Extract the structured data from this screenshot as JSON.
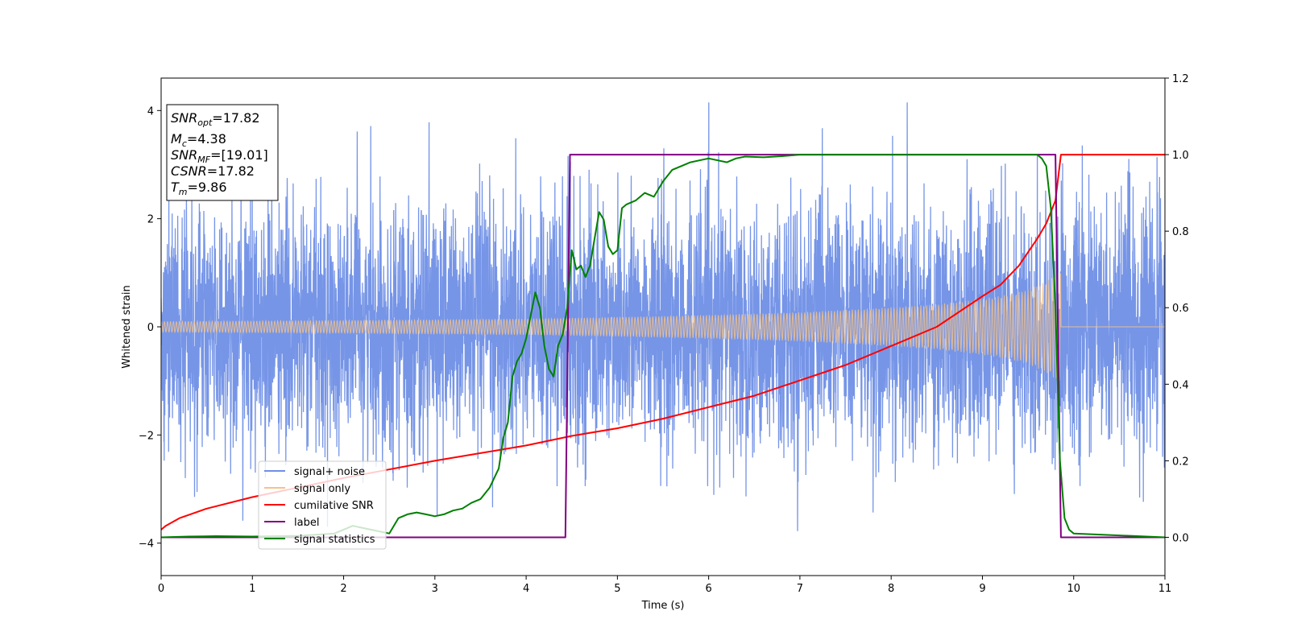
{
  "chart_data": {
    "type": "line",
    "xlabel": "Time (s)",
    "ylabel_left": "Whitened strain",
    "ylabel_right": "",
    "xlim": [
      0,
      11
    ],
    "ylim_left": [
      -4.6,
      4.6
    ],
    "ylim_right": [
      -0.1,
      1.2
    ],
    "xticks": [
      "0",
      "1",
      "2",
      "3",
      "4",
      "5",
      "6",
      "7",
      "8",
      "9",
      "10",
      "11"
    ],
    "yticks_left": [
      "4",
      "2",
      "0",
      "−2",
      "−4"
    ],
    "yticks_right": [
      "1.2",
      "1.0",
      "0.8",
      "0.6",
      "0.4",
      "0.2",
      "0.0"
    ],
    "legend_position": "lower left",
    "info_box": {
      "snr_opt": "=17.82",
      "mc": "=4.38",
      "snr_mf": "=[19.01]",
      "csnr": "=17.82",
      "tm": "=9.86"
    },
    "series": [
      {
        "name": "signal+ noise",
        "axis": "left",
        "color": "#6f8fe6",
        "style": "noise band",
        "x_range": [
          0,
          11
        ],
        "typical_range": [
          -2.0,
          2.0
        ],
        "extremes": [
          -4.15,
          4.15
        ]
      },
      {
        "name": "signal only",
        "axis": "left",
        "color": "#f5c38a",
        "style": "chirp envelope",
        "envelope_x": [
          0,
          2,
          4,
          5,
          6,
          7,
          8,
          8.5,
          9,
          9.3,
          9.5,
          9.65,
          9.75,
          9.82,
          9.86
        ],
        "envelope_y": [
          0.1,
          0.12,
          0.15,
          0.18,
          0.22,
          0.27,
          0.36,
          0.42,
          0.52,
          0.6,
          0.7,
          0.8,
          0.9,
          1.0,
          1.05
        ]
      },
      {
        "name": "cumilative SNR",
        "axis": "right",
        "color": "#ff0000",
        "x": [
          0,
          0.05,
          0.2,
          0.5,
          1,
          1.5,
          2,
          3,
          4,
          4.5,
          5,
          5.5,
          6,
          6.5,
          7,
          7.5,
          8,
          8.5,
          9,
          9.2,
          9.4,
          9.6,
          9.7,
          9.8,
          9.86,
          11
        ],
        "y": [
          0.02,
          0.03,
          0.05,
          0.075,
          0.105,
          0.13,
          0.155,
          0.2,
          0.24,
          0.265,
          0.285,
          0.31,
          0.34,
          0.37,
          0.41,
          0.45,
          0.5,
          0.55,
          0.63,
          0.66,
          0.71,
          0.78,
          0.82,
          0.88,
          1.0,
          1.0
        ]
      },
      {
        "name": "label",
        "axis": "right",
        "color": "#800080",
        "x": [
          0,
          4.43,
          4.48,
          9.8,
          9.86,
          11
        ],
        "y": [
          0,
          0,
          1,
          1,
          0,
          0
        ]
      },
      {
        "name": "signal statistics",
        "axis": "right",
        "color": "#008000",
        "x": [
          0,
          0.3,
          0.6,
          1.0,
          1.5,
          1.9,
          2.1,
          2.3,
          2.5,
          2.6,
          2.7,
          2.8,
          2.9,
          3.0,
          3.1,
          3.2,
          3.3,
          3.4,
          3.5,
          3.6,
          3.7,
          3.75,
          3.8,
          3.85,
          3.9,
          3.95,
          4.0,
          4.05,
          4.1,
          4.15,
          4.2,
          4.25,
          4.3,
          4.35,
          4.4,
          4.45,
          4.5,
          4.55,
          4.6,
          4.65,
          4.7,
          4.75,
          4.8,
          4.85,
          4.9,
          4.95,
          5.0,
          5.05,
          5.1,
          5.2,
          5.3,
          5.4,
          5.5,
          5.6,
          5.7,
          5.8,
          5.9,
          6.0,
          6.1,
          6.2,
          6.3,
          6.4,
          6.6,
          6.8,
          7.0,
          7.5,
          8.0,
          8.5,
          9.0,
          9.3,
          9.5,
          9.6,
          9.65,
          9.7,
          9.75,
          9.8,
          9.85,
          9.9,
          9.95,
          10.0,
          11.0
        ],
        "y": [
          0.0,
          0.002,
          0.003,
          0.002,
          0.004,
          0.01,
          0.03,
          0.02,
          0.01,
          0.05,
          0.06,
          0.065,
          0.06,
          0.055,
          0.06,
          0.07,
          0.075,
          0.09,
          0.1,
          0.13,
          0.18,
          0.26,
          0.3,
          0.42,
          0.46,
          0.48,
          0.52,
          0.58,
          0.64,
          0.6,
          0.5,
          0.44,
          0.42,
          0.5,
          0.53,
          0.6,
          0.75,
          0.7,
          0.71,
          0.68,
          0.71,
          0.78,
          0.85,
          0.83,
          0.76,
          0.74,
          0.75,
          0.86,
          0.87,
          0.88,
          0.9,
          0.89,
          0.93,
          0.96,
          0.97,
          0.98,
          0.985,
          0.99,
          0.985,
          0.98,
          0.99,
          0.995,
          0.993,
          0.996,
          1.0,
          1.0,
          1.0,
          1.0,
          1.0,
          1.0,
          1.0,
          1.0,
          0.99,
          0.97,
          0.86,
          0.6,
          0.2,
          0.05,
          0.02,
          0.01,
          0.0
        ]
      }
    ]
  }
}
